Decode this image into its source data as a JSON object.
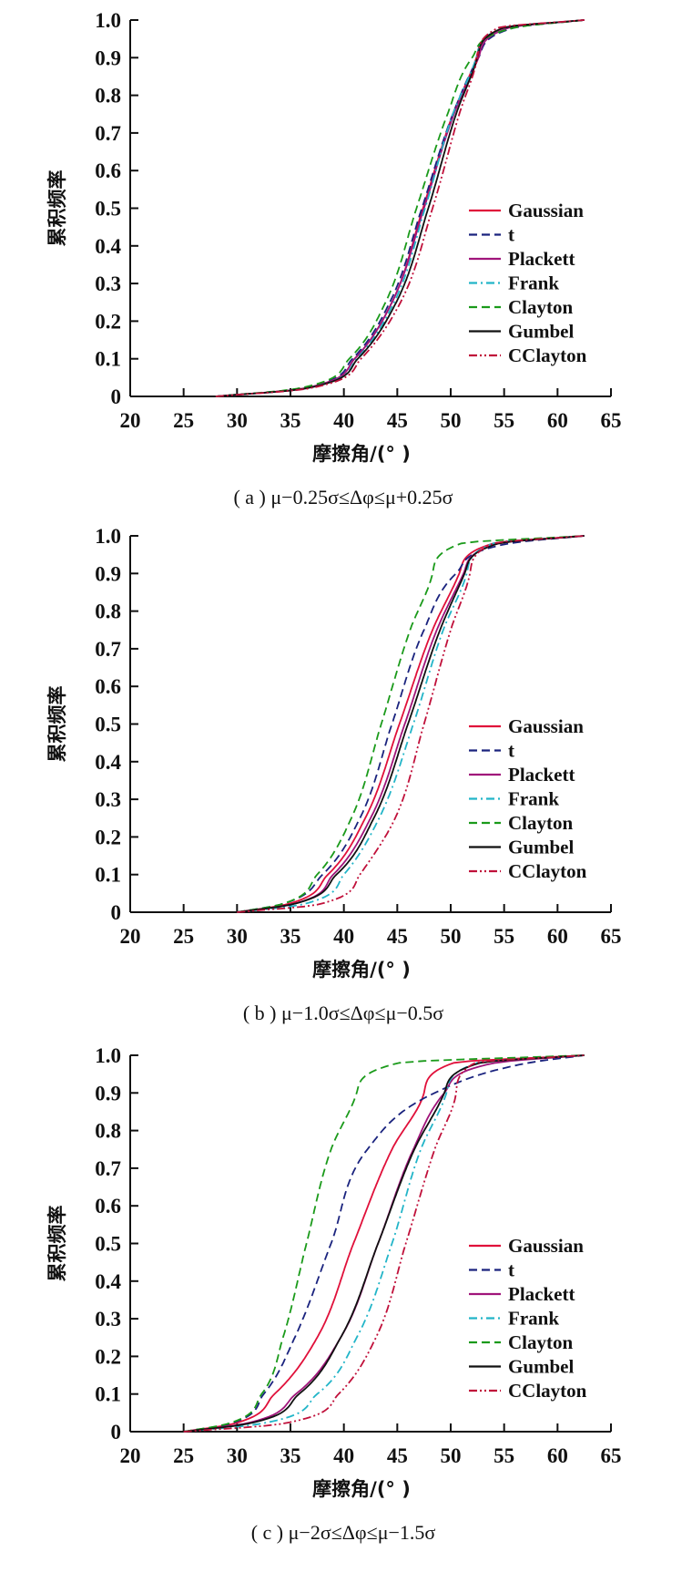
{
  "chart_data": [
    {
      "type": "line",
      "title": "",
      "caption": "( a ) μ−0.25σ≤Δφ≤μ+0.25σ",
      "xlabel": "摩擦角/(° )",
      "ylabel": "累积频率",
      "xlim": [
        20,
        65
      ],
      "ylim": [
        0,
        1
      ],
      "xticks": [
        "20",
        "25",
        "30",
        "35",
        "40",
        "45",
        "50",
        "55",
        "60",
        "65"
      ],
      "yticks": [
        "0",
        "0.1",
        "0.2",
        "0.3",
        "0.4",
        "0.5",
        "0.6",
        "0.7",
        "0.8",
        "0.9",
        "1.0"
      ],
      "grid": false,
      "legend_position": "right-middle",
      "y_levels": [
        0,
        0.02,
        0.1,
        0.25,
        0.5,
        0.75,
        0.9,
        0.98,
        1.0
      ],
      "series": [
        {
          "name": "Gaussian",
          "x": [
            28,
            36,
            41,
            44.5,
            47.4,
            50.2,
            52.4,
            55,
            62.5
          ]
        },
        {
          "name": "t",
          "x": [
            28,
            35.8,
            40.8,
            44.3,
            47.3,
            50.2,
            52.6,
            56,
            62.5
          ]
        },
        {
          "name": "Plackett",
          "x": [
            28,
            36,
            41,
            44.5,
            47.5,
            50.3,
            52.6,
            55.5,
            62.5
          ]
        },
        {
          "name": "Frank",
          "x": [
            28,
            36.2,
            41.2,
            44.7,
            47.6,
            50.2,
            52.4,
            55,
            62.5
          ]
        },
        {
          "name": "Clayton",
          "x": [
            28,
            35.5,
            40.5,
            43.9,
            46.8,
            49.7,
            52,
            56,
            62.5
          ]
        },
        {
          "name": "Gumbel",
          "x": [
            28,
            36.2,
            41.3,
            44.9,
            47.9,
            50.5,
            52.5,
            55,
            62.5
          ]
        },
        {
          "name": "CClayton",
          "x": [
            28,
            36.5,
            41.6,
            45.3,
            48.3,
            50.8,
            52.5,
            54.5,
            62.5
          ]
        }
      ]
    },
    {
      "type": "line",
      "title": "",
      "caption": "( b ) μ−1.0σ≤Δφ≤μ−0.5σ",
      "xlabel": "摩擦角/(° )",
      "ylabel": "累积频率",
      "xlim": [
        20,
        65
      ],
      "ylim": [
        0,
        1
      ],
      "xticks": [
        "20",
        "25",
        "30",
        "35",
        "40",
        "45",
        "50",
        "55",
        "60",
        "65"
      ],
      "yticks": [
        "0",
        "0.1",
        "0.2",
        "0.3",
        "0.4",
        "0.5",
        "0.6",
        "0.7",
        "0.8",
        "0.9",
        "1.0"
      ],
      "grid": false,
      "legend_position": "right-middle",
      "y_levels": [
        0,
        0.02,
        0.1,
        0.25,
        0.5,
        0.75,
        0.9,
        0.98,
        1.0
      ],
      "series": [
        {
          "name": "Gaussian",
          "x": [
            30,
            34.5,
            38.5,
            42,
            45.2,
            48.3,
            50.8,
            54,
            62.5
          ]
        },
        {
          "name": "t",
          "x": [
            30,
            34,
            38,
            41.5,
            44.5,
            47.5,
            50.5,
            55.5,
            62.5
          ]
        },
        {
          "name": "Plackett",
          "x": [
            30,
            35,
            39,
            42.5,
            45.7,
            48.7,
            51.2,
            54.5,
            62.5
          ]
        },
        {
          "name": "Frank",
          "x": [
            30,
            36,
            40,
            43.3,
            46.5,
            49.3,
            51.5,
            54,
            62.5
          ]
        },
        {
          "name": "Clayton",
          "x": [
            30,
            34,
            37.5,
            40.7,
            43.5,
            46.2,
            48.3,
            51,
            62.5
          ]
        },
        {
          "name": "Gumbel",
          "x": [
            30,
            35,
            39.3,
            42.8,
            46,
            49,
            51.3,
            54.5,
            62.5
          ]
        },
        {
          "name": "CClayton",
          "x": [
            30,
            37.5,
            41.5,
            44.8,
            47.5,
            50,
            51.8,
            54,
            62.5
          ]
        }
      ]
    },
    {
      "type": "line",
      "title": "",
      "caption": "( c ) μ−2σ≤Δφ≤μ−1.5σ",
      "xlabel": "摩擦角/(° )",
      "ylabel": "累积频率",
      "xlim": [
        20,
        65
      ],
      "ylim": [
        0,
        1
      ],
      "xticks": [
        "20",
        "25",
        "30",
        "35",
        "40",
        "45",
        "50",
        "55",
        "60",
        "65"
      ],
      "yticks": [
        "0",
        "0.1",
        "0.2",
        "0.3",
        "0.4",
        "0.5",
        "0.6",
        "0.7",
        "0.8",
        "0.9",
        "1.0"
      ],
      "grid": false,
      "legend_position": "right-middle",
      "y_levels": [
        0,
        0.02,
        0.1,
        0.25,
        0.5,
        0.75,
        0.9,
        0.98,
        1.0
      ],
      "series": [
        {
          "name": "Gaussian",
          "x": [
            25,
            29.5,
            33.5,
            37.5,
            40.9,
            44.5,
            47.5,
            50.3,
            62.5
          ]
        },
        {
          "name": "t",
          "x": [
            25,
            29.2,
            32.5,
            35.4,
            38.8,
            42.2,
            48.5,
            57.3,
            62.5
          ]
        },
        {
          "name": "Plackett",
          "x": [
            25,
            30.5,
            35.5,
            39.7,
            43.2,
            46.5,
            49.4,
            54.2,
            62.5
          ]
        },
        {
          "name": "Frank",
          "x": [
            25,
            32,
            37.5,
            41.2,
            44.5,
            47.2,
            49.6,
            52.5,
            62.5
          ]
        },
        {
          "name": "Clayton",
          "x": [
            25,
            29,
            32.3,
            34.3,
            36.5,
            38.8,
            41.2,
            45.2,
            62.5
          ]
        },
        {
          "name": "Gumbel",
          "x": [
            25,
            30.8,
            35.8,
            39.7,
            43.2,
            46.6,
            49.4,
            52.8,
            62.5
          ]
        },
        {
          "name": "CClayton",
          "x": [
            25,
            34,
            39.5,
            43.0,
            45.8,
            48.5,
            50.5,
            52.3,
            62.5
          ]
        }
      ]
    }
  ],
  "series_style": {
    "Gaussian": {
      "color": "#e0103a",
      "dash": "solid"
    },
    "t": {
      "color": "#1a237e",
      "dash": "dashed"
    },
    "Plackett": {
      "color": "#a0147a",
      "dash": "solid"
    },
    "Frank": {
      "color": "#22b5c8",
      "dash": "dashdot"
    },
    "Clayton": {
      "color": "#1a9a1a",
      "dash": "dashed"
    },
    "Gumbel": {
      "color": "#111111",
      "dash": "solid"
    },
    "CClayton": {
      "color": "#c0103a",
      "dash": "dashdotdot"
    }
  }
}
